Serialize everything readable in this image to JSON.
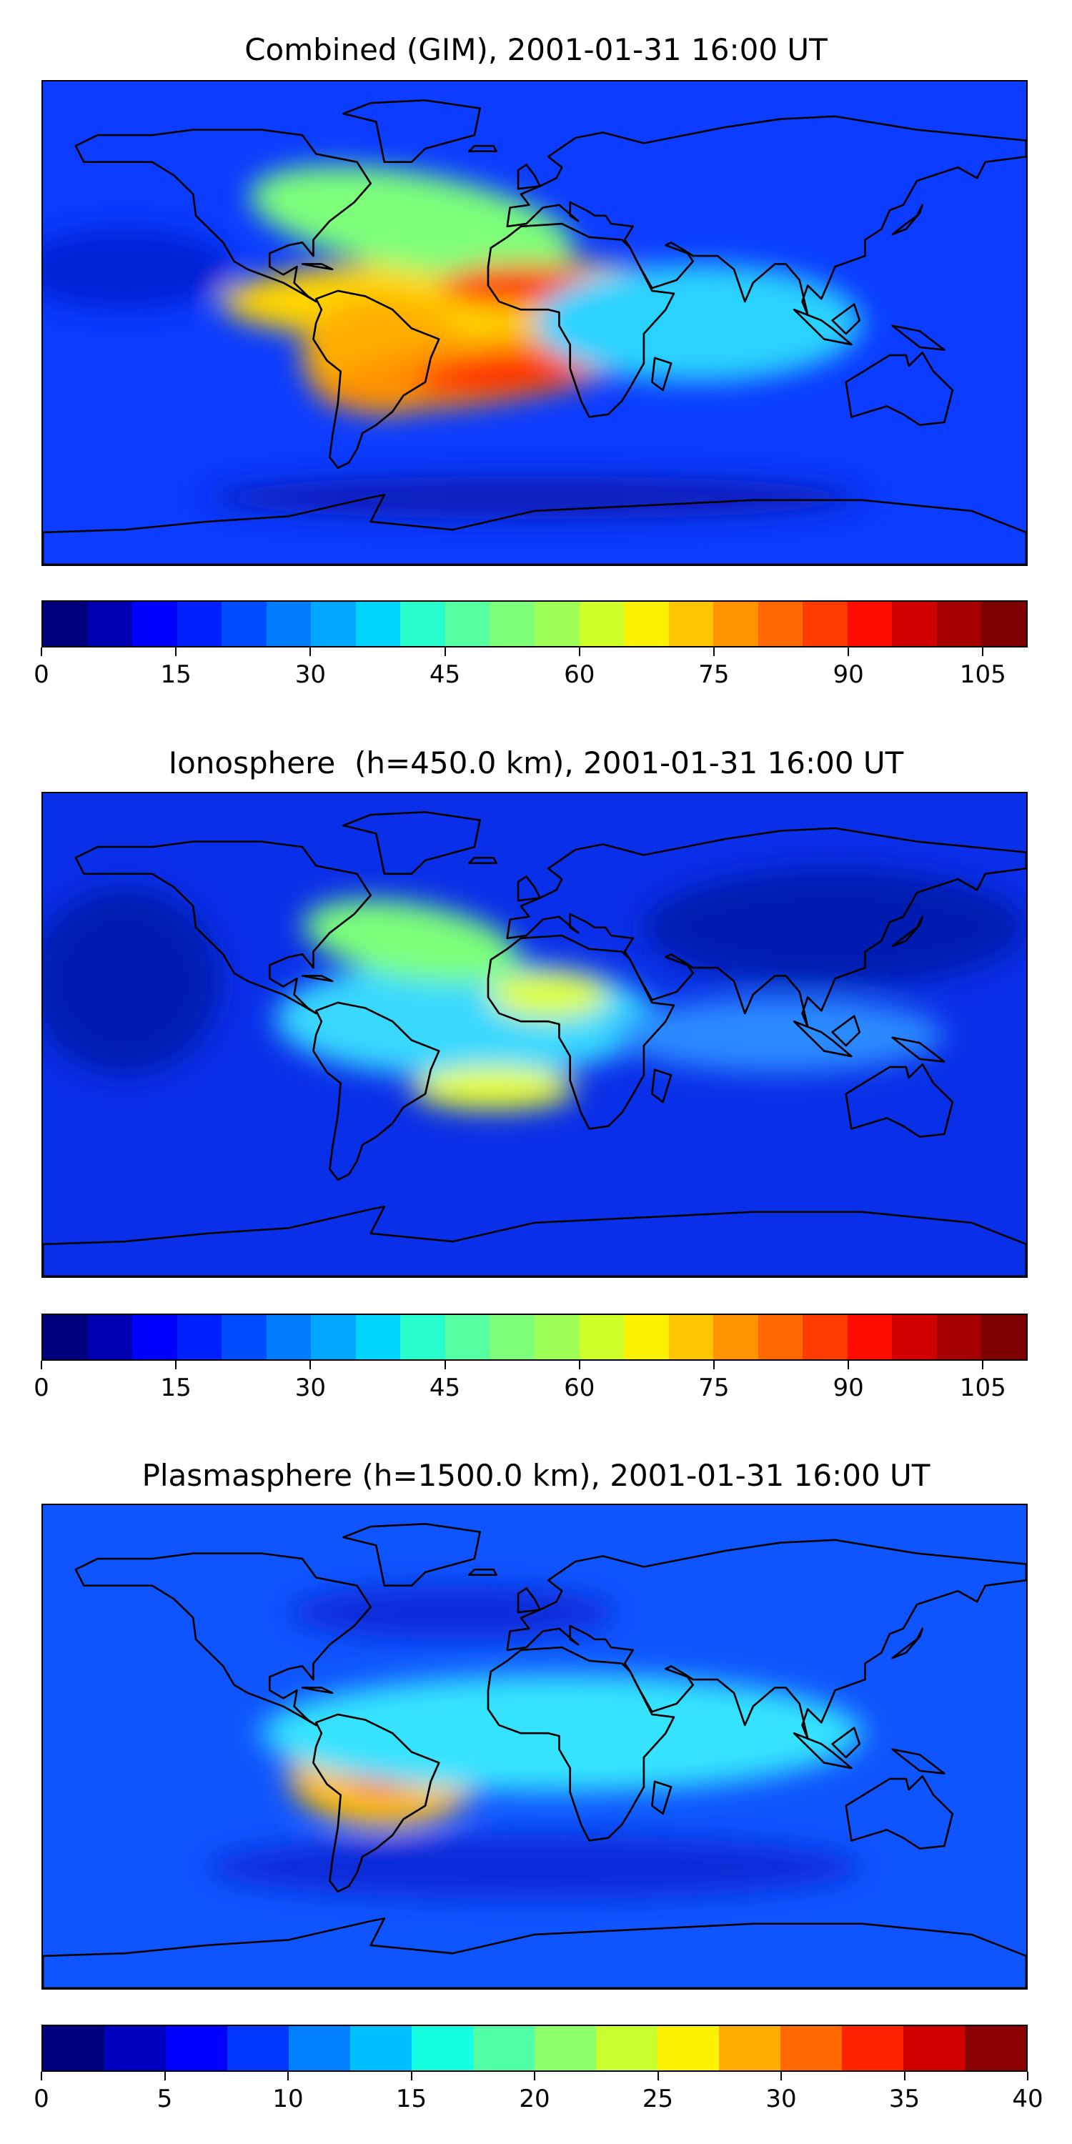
{
  "panels": [
    {
      "title": "Combined (GIM), 2001-01-31 16:00 UT",
      "colorbar": {
        "min": 0,
        "max": 110,
        "step": 5,
        "ticks": [
          0,
          15,
          30,
          45,
          60,
          75,
          90,
          105
        ]
      },
      "background": "#0b3cff",
      "blobs": [
        {
          "lon": -20,
          "lat": 8,
          "rx": 95,
          "ry": 16,
          "color": "#ffd500",
          "rot": 0
        },
        {
          "lon": -55,
          "lat": -12,
          "rx": 30,
          "ry": 22,
          "color": "#ffae00",
          "rot": 0
        },
        {
          "lon": -20,
          "lat": -18,
          "rx": 60,
          "ry": 12,
          "color": "#ff9100",
          "rot": -8
        },
        {
          "lon": -45,
          "lat": 38,
          "rx": 60,
          "ry": 18,
          "color": "#7dff7a",
          "rot": 10
        },
        {
          "lon": -5,
          "lat": 14,
          "rx": 30,
          "ry": 8,
          "color": "#ff3a00",
          "rot": 0
        },
        {
          "lon": -12,
          "lat": -19,
          "rx": 32,
          "ry": 7,
          "color": "#ff2400",
          "rot": -5
        },
        {
          "lon": 60,
          "lat": 0,
          "rx": 60,
          "ry": 22,
          "color": "#2ad3ff",
          "rot": 0
        },
        {
          "lon": -150,
          "lat": 20,
          "rx": 40,
          "ry": 15,
          "color": "#0024d6",
          "rot": 0
        },
        {
          "lon": 0,
          "lat": -65,
          "rx": 120,
          "ry": 8,
          "color": "#0a1eb8",
          "rot": 0
        }
      ]
    },
    {
      "title": "Ionosphere  (h=450.0 km), 2001-01-31 16:00 UT",
      "colorbar": {
        "min": 0,
        "max": 110,
        "step": 5,
        "ticks": [
          0,
          15,
          30,
          45,
          60,
          75,
          90,
          105
        ]
      },
      "background": "#0a2fe8",
      "blobs": [
        {
          "lon": -25,
          "lat": 6,
          "rx": 70,
          "ry": 22,
          "color": "#39d8ff",
          "rot": 0
        },
        {
          "lon": -45,
          "lat": 35,
          "rx": 40,
          "ry": 14,
          "color": "#7dff7a",
          "rot": 10
        },
        {
          "lon": 5,
          "lat": 15,
          "rx": 22,
          "ry": 9,
          "color": "#dfff3a",
          "rot": 0
        },
        {
          "lon": -15,
          "lat": -20,
          "rx": 30,
          "ry": 8,
          "color": "#e9ff2a",
          "rot": 0
        },
        {
          "lon": -150,
          "lat": 20,
          "rx": 35,
          "ry": 35,
          "color": "#001bb0",
          "rot": 0
        },
        {
          "lon": 110,
          "lat": 40,
          "rx": 70,
          "ry": 22,
          "color": "#001bb0",
          "rot": 0
        },
        {
          "lon": 90,
          "lat": 0,
          "rx": 60,
          "ry": 14,
          "color": "#2a8aff",
          "rot": 0
        }
      ]
    },
    {
      "title": "Plasmasphere (h=1500.0 km), 2001-01-31 16:00 UT",
      "colorbar": {
        "min": 0,
        "max": 40,
        "step": 2.5,
        "ticks": [
          0,
          5,
          10,
          15,
          20,
          25,
          30,
          35,
          40
        ]
      },
      "background": "#0f55ff",
      "blobs": [
        {
          "lon": -55,
          "lat": -10,
          "rx": 35,
          "ry": 20,
          "color": "#ffbd00",
          "rot": 0
        },
        {
          "lon": -55,
          "lat": -9,
          "rx": 14,
          "ry": 8,
          "color": "#ff3300",
          "rot": 0
        },
        {
          "lon": 65,
          "lat": 5,
          "rx": 35,
          "ry": 18,
          "color": "#f5ff2a",
          "rot": 0
        },
        {
          "lon": 75,
          "lat": 8,
          "rx": 12,
          "ry": 6,
          "color": "#ff9900",
          "rot": 0
        },
        {
          "lon": 10,
          "lat": 5,
          "rx": 110,
          "ry": 22,
          "color": "#34e3ff",
          "rot": 0
        },
        {
          "lon": 0,
          "lat": -45,
          "rx": 120,
          "ry": 12,
          "color": "#0a2ad8",
          "rot": 0
        },
        {
          "lon": -30,
          "lat": 50,
          "rx": 60,
          "ry": 10,
          "color": "#0a2ad8",
          "rot": 0
        }
      ]
    }
  ],
  "colormap": [
    "#00007f",
    "#0000b3",
    "#0000ff",
    "#0021ff",
    "#004dff",
    "#007dff",
    "#00a8ff",
    "#00d4ff",
    "#29ffce",
    "#56ffa0",
    "#7dff7a",
    "#a0ff56",
    "#ceff29",
    "#fbf100",
    "#ffc400",
    "#ff9400",
    "#ff6800",
    "#ff3b00",
    "#ff0e00",
    "#d10000",
    "#a40000",
    "#7f0000"
  ],
  "plasma_colormap": [
    "#00007f",
    "#0000c0",
    "#0000ff",
    "#0037ff",
    "#007fff",
    "#00bfff",
    "#14ffe2",
    "#51ffa6",
    "#8cff6b",
    "#c8ff2e",
    "#fbf100",
    "#ffae00",
    "#ff6800",
    "#ff2300",
    "#d10000",
    "#8b0000"
  ]
}
